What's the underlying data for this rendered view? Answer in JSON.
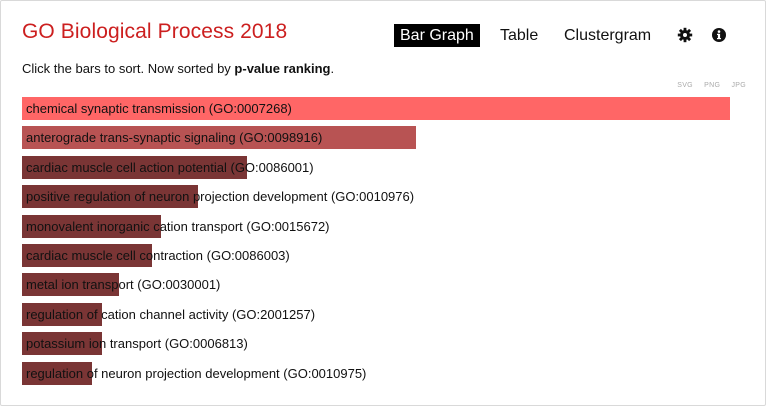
{
  "header": {
    "title": "GO Biological Process 2018",
    "tabs": [
      {
        "label": "Bar Graph",
        "active": true
      },
      {
        "label": "Table",
        "active": false
      },
      {
        "label": "Clustergram",
        "active": false
      }
    ],
    "icons": [
      "gear-icon",
      "info-icon"
    ]
  },
  "subtitle": {
    "prefix": "Click the bars to sort. Now sorted by ",
    "sort_key": "p-value ranking",
    "suffix": "."
  },
  "exports": [
    "SVG",
    "PNG",
    "JPG"
  ],
  "colors": {
    "title": "#cc1f1f",
    "top_bar": "#ff6666",
    "second_bar": "#b85353",
    "other_bars": "#7a3535"
  },
  "bars": [
    {
      "label": "chemical synaptic transmission (GO:0007268)",
      "value": 1.0
    },
    {
      "label": "anterograde trans-synaptic signaling (GO:0098916)",
      "value": 0.557
    },
    {
      "label": "cardiac muscle cell action potential (GO:0086001)",
      "value": 0.318
    },
    {
      "label": "positive regulation of neuron projection development (GO:0010976)",
      "value": 0.249
    },
    {
      "label": "monovalent inorganic cation transport (GO:0015672)",
      "value": 0.197
    },
    {
      "label": "cardiac muscle cell contraction (GO:0086003)",
      "value": 0.183
    },
    {
      "label": "metal ion transport (GO:0030001)",
      "value": 0.137
    },
    {
      "label": "regulation of cation channel activity (GO:2001257)",
      "value": 0.113
    },
    {
      "label": "potassium ion transport (GO:0006813)",
      "value": 0.113
    },
    {
      "label": "regulation of neuron projection development (GO:0010975)",
      "value": 0.099
    }
  ]
}
